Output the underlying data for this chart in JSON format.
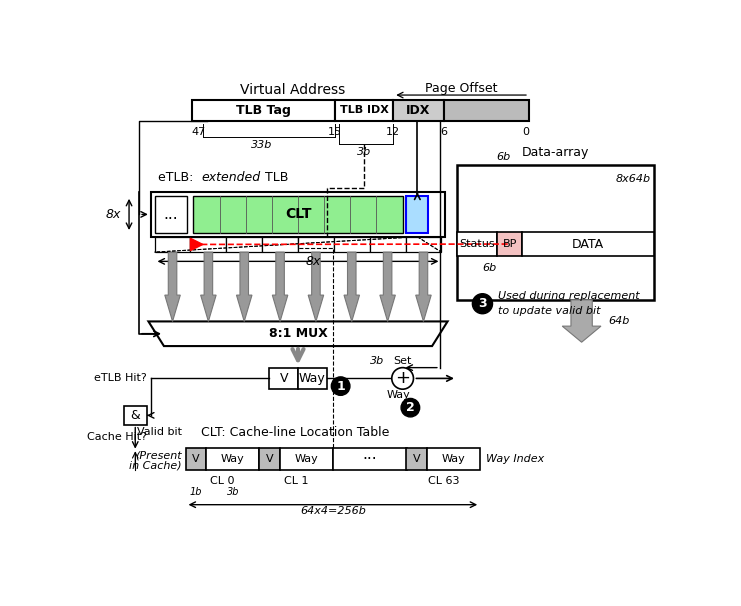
{
  "bg_color": "#ffffff",
  "page_offset_label": "Page Offset",
  "va_label": "Virtual Address",
  "tlb_tag_label": "TLB Tag",
  "tlb_idx_label": "TLB IDX",
  "idx_label": "IDX",
  "bit47": "47",
  "bit15": "15",
  "bit12": "12",
  "bit6": "6",
  "bit0": "0",
  "bits_33b": "33b",
  "bits_3b": "3b",
  "bits_6b": "6b",
  "clt_label": "CLT",
  "mux_label": "8:1 MUX",
  "etlb_hit_label": "eTLB Hit?",
  "cache_hit_label": "Cache Hit?",
  "circle1_label": "1",
  "circle2_label": "2",
  "circle3_label": "3",
  "note3_line1": "Used during replacement",
  "note3_line2": "to update valid bit",
  "data_array_label": "Data-array",
  "status_label": "Status",
  "bp_label": "BP",
  "data_label": "DATA",
  "size_label": "8x64b",
  "out_label": "64b",
  "set_label": "Set",
  "way_label": "Way",
  "way_index_label": "Way Index",
  "clt_full_label": "CLT: Cache-line Location Table",
  "valid_bit_label": "Valid bit",
  "present_label": "(Present",
  "in_cache_label": "in Cache)",
  "cl0_label": "CL 0",
  "cl1_label": "CL 1",
  "cl63_label": "CL 63",
  "width_label": "64x4=256b",
  "green_color": "#90ee90",
  "light_pink": "#f4c2c2",
  "gray_fill": "#aaaaaa",
  "label_6b_data": "6b",
  "label_3b": "3b",
  "label_1b": "1b",
  "label_3b_way": "3b",
  "label_8x_left": "8x",
  "label_8x_top": "8x"
}
